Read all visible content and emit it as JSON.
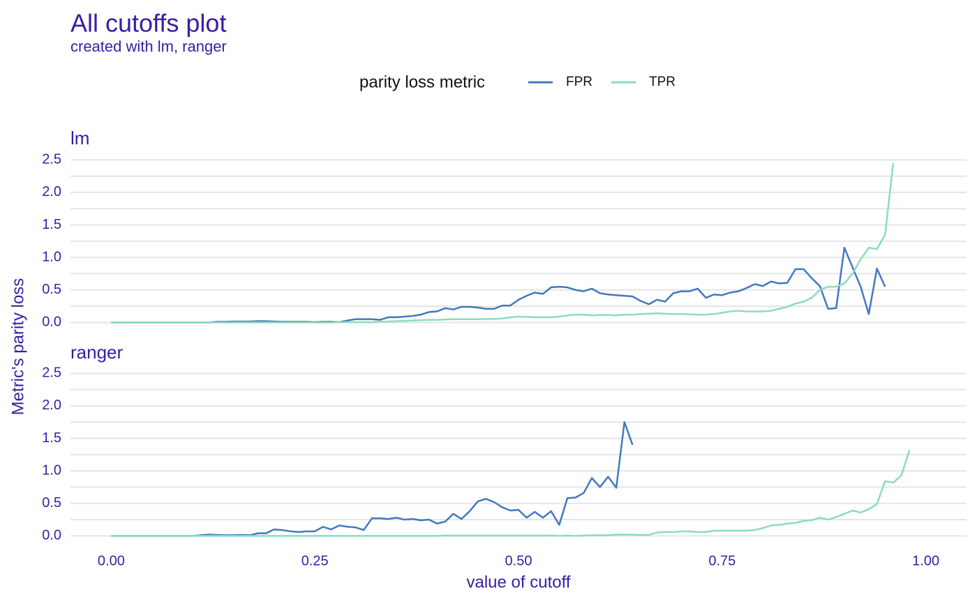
{
  "title": "All cutoffs plot",
  "subtitle": "created with lm, ranger",
  "legend_title": "parity loss metric",
  "x_label": "value of cutoff",
  "y_label": "Metric's parity loss",
  "chart_data": [
    {
      "type": "line",
      "title": "lm",
      "x": [
        0,
        0.01,
        0.02,
        0.03,
        0.04,
        0.05,
        0.06,
        0.07,
        0.08,
        0.09,
        0.1,
        0.11,
        0.12,
        0.13,
        0.14,
        0.15,
        0.16,
        0.17,
        0.18,
        0.19,
        0.2,
        0.21,
        0.22,
        0.23,
        0.24,
        0.25,
        0.26,
        0.27,
        0.28,
        0.29,
        0.3,
        0.31,
        0.32,
        0.33,
        0.34,
        0.35,
        0.36,
        0.37,
        0.38,
        0.39,
        0.4,
        0.41,
        0.42,
        0.43,
        0.44,
        0.45,
        0.46,
        0.47,
        0.48,
        0.49,
        0.5,
        0.51,
        0.52,
        0.53,
        0.54,
        0.55,
        0.56,
        0.57,
        0.58,
        0.59,
        0.6,
        0.61,
        0.62,
        0.63,
        0.64,
        0.65,
        0.66,
        0.67,
        0.68,
        0.69,
        0.7,
        0.71,
        0.72,
        0.73,
        0.74,
        0.75,
        0.76,
        0.77,
        0.78,
        0.79,
        0.8,
        0.81,
        0.82,
        0.83,
        0.84,
        0.85,
        0.86,
        0.87,
        0.88,
        0.89,
        0.9,
        0.91,
        0.92,
        0.93,
        0.94,
        0.95,
        0.96,
        0.97,
        0.98
      ],
      "series": [
        {
          "name": "FPR",
          "color": "#4378bf",
          "values": [
            0,
            0,
            0,
            0,
            0,
            0,
            0,
            0,
            0,
            0,
            0,
            0,
            0,
            0.01,
            0.01,
            0.015,
            0.015,
            0.015,
            0.02,
            0.02,
            0.015,
            0.01,
            0.01,
            0.01,
            0.01,
            0.005,
            0.01,
            0.01,
            0.005,
            0.03,
            0.05,
            0.05,
            0.05,
            0.04,
            0.08,
            0.08,
            0.09,
            0.1,
            0.12,
            0.16,
            0.17,
            0.22,
            0.2,
            0.24,
            0.24,
            0.23,
            0.21,
            0.21,
            0.26,
            0.26,
            0.35,
            0.41,
            0.46,
            0.44,
            0.54,
            0.55,
            0.54,
            0.5,
            0.48,
            0.52,
            0.45,
            0.43,
            0.42,
            0.41,
            0.4,
            0.33,
            0.28,
            0.35,
            0.32,
            0.45,
            0.48,
            0.48,
            0.52,
            0.38,
            0.43,
            0.42,
            0.46,
            0.48,
            0.53,
            0.59,
            0.56,
            0.63,
            0.6,
            0.61,
            0.82,
            0.82,
            0.68,
            0.56,
            0.21,
            0.22,
            1.15,
            0.85,
            0.55,
            0.13,
            0.83,
            0.55,
            null,
            null,
            null
          ]
        },
        {
          "name": "TPR",
          "color": "#8bdcbe",
          "values": [
            0,
            0,
            0,
            0,
            0,
            0,
            0,
            0,
            0,
            0,
            0,
            0,
            0,
            0,
            0,
            0,
            0,
            0,
            0,
            0,
            0,
            0,
            0,
            0,
            0,
            0,
            0,
            0,
            0.005,
            0.005,
            0.005,
            0.005,
            0.005,
            0.01,
            0.015,
            0.02,
            0.025,
            0.03,
            0.035,
            0.04,
            0.04,
            0.045,
            0.05,
            0.05,
            0.05,
            0.05,
            0.055,
            0.055,
            0.06,
            0.08,
            0.09,
            0.085,
            0.08,
            0.08,
            0.08,
            0.09,
            0.11,
            0.12,
            0.12,
            0.11,
            0.115,
            0.115,
            0.11,
            0.12,
            0.12,
            0.13,
            0.135,
            0.14,
            0.135,
            0.13,
            0.13,
            0.125,
            0.12,
            0.12,
            0.13,
            0.15,
            0.17,
            0.18,
            0.17,
            0.17,
            0.17,
            0.18,
            0.21,
            0.24,
            0.29,
            0.32,
            0.38,
            0.5,
            0.55,
            0.55,
            0.6,
            0.75,
            0.97,
            1.15,
            1.13,
            1.35,
            2.45,
            null,
            null
          ]
        }
      ],
      "xlim": [
        -0.05,
        1.05
      ],
      "ylim": [
        -0.05,
        2.6
      ],
      "yticks": [
        {
          "value": 0,
          "label": "0.0"
        },
        0.5,
        {
          "value": 1,
          "label": "1.0"
        },
        1.5,
        {
          "value": 2,
          "label": "2.0"
        },
        2.5
      ],
      "grid": true
    },
    {
      "type": "line",
      "title": "ranger",
      "x": [
        0,
        0.01,
        0.02,
        0.03,
        0.04,
        0.05,
        0.06,
        0.07,
        0.08,
        0.09,
        0.1,
        0.11,
        0.12,
        0.13,
        0.14,
        0.15,
        0.16,
        0.17,
        0.18,
        0.19,
        0.2,
        0.21,
        0.22,
        0.23,
        0.24,
        0.25,
        0.26,
        0.27,
        0.28,
        0.29,
        0.3,
        0.31,
        0.32,
        0.33,
        0.34,
        0.35,
        0.36,
        0.37,
        0.38,
        0.39,
        0.4,
        0.41,
        0.42,
        0.43,
        0.44,
        0.45,
        0.46,
        0.47,
        0.48,
        0.49,
        0.5,
        0.51,
        0.52,
        0.53,
        0.54,
        0.55,
        0.56,
        0.57,
        0.58,
        0.59,
        0.6,
        0.61,
        0.62,
        0.63,
        0.64,
        0.65,
        0.66,
        0.67,
        0.68,
        0.69,
        0.7,
        0.71,
        0.72,
        0.73,
        0.74,
        0.75,
        0.76,
        0.77,
        0.78,
        0.79,
        0.8,
        0.81,
        0.82,
        0.83,
        0.84,
        0.85,
        0.86,
        0.87,
        0.88,
        0.89,
        0.9,
        0.91,
        0.92,
        0.93,
        0.94,
        0.95,
        0.96,
        0.97,
        0.98
      ],
      "series": [
        {
          "name": "FPR",
          "color": "#4378bf",
          "values": [
            0,
            0,
            0,
            0,
            0,
            0,
            0,
            0,
            0,
            0,
            0,
            0.01,
            0.02,
            0.015,
            0.01,
            0.01,
            0.015,
            0.01,
            0.04,
            0.04,
            0.1,
            0.09,
            0.07,
            0.06,
            0.07,
            0.07,
            0.14,
            0.1,
            0.16,
            0.14,
            0.13,
            0.09,
            0.27,
            0.27,
            0.26,
            0.28,
            0.25,
            0.26,
            0.24,
            0.25,
            0.19,
            0.22,
            0.34,
            0.26,
            0.38,
            0.53,
            0.57,
            0.52,
            0.44,
            0.39,
            0.4,
            0.28,
            0.37,
            0.28,
            0.38,
            0.17,
            0.58,
            0.59,
            0.66,
            0.89,
            0.75,
            0.91,
            0.74,
            1.75,
            1.4,
            null,
            null,
            null,
            null,
            null,
            null,
            null,
            null,
            null,
            null,
            null,
            null,
            null,
            null,
            null,
            null,
            null,
            null,
            null,
            null,
            null,
            null,
            null,
            null,
            null,
            null,
            null,
            null,
            null,
            null,
            null,
            null,
            null,
            null
          ]
        },
        {
          "name": "TPR",
          "color": "#8bdcbe",
          "values": [
            0,
            0,
            0,
            0,
            0,
            0,
            0,
            0,
            0,
            0,
            0,
            0,
            0,
            0,
            0,
            0,
            0,
            0,
            0,
            0,
            0,
            0,
            0,
            0,
            0,
            0,
            0,
            0,
            0,
            0,
            0,
            0,
            0,
            0,
            0,
            0,
            0,
            0,
            0,
            0,
            0,
            0.005,
            0.005,
            0.005,
            0.005,
            0.005,
            0.005,
            0.005,
            0.005,
            0.005,
            0.005,
            0.005,
            0.005,
            0.005,
            0.005,
            0,
            0.005,
            0,
            0.005,
            0.01,
            0.01,
            0.01,
            0.02,
            0.02,
            0.02,
            0.015,
            0.015,
            0.05,
            0.06,
            0.06,
            0.07,
            0.07,
            0.06,
            0.06,
            0.08,
            0.08,
            0.08,
            0.08,
            0.08,
            0.09,
            0.12,
            0.16,
            0.17,
            0.19,
            0.2,
            0.23,
            0.24,
            0.28,
            0.25,
            0.29,
            0.34,
            0.39,
            0.36,
            0.41,
            0.49,
            0.84,
            0.82,
            0.93,
            1.32
          ]
        }
      ],
      "xlim": [
        -0.05,
        1.05
      ],
      "ylim": [
        -0.05,
        2.6
      ],
      "yticks": [
        {
          "value": 0,
          "label": "0.0"
        },
        0.5,
        {
          "value": 1,
          "label": "1.0"
        },
        1.5,
        {
          "value": 2,
          "label": "2.0"
        },
        2.5
      ],
      "xticks": [
        {
          "value": 0,
          "label": "0.00"
        },
        {
          "value": 0.25,
          "label": "0.25"
        },
        {
          "value": 0.5,
          "label": "0.50"
        },
        {
          "value": 0.75,
          "label": "0.75"
        },
        {
          "value": 1,
          "label": "1.00"
        }
      ],
      "grid": true
    }
  ]
}
